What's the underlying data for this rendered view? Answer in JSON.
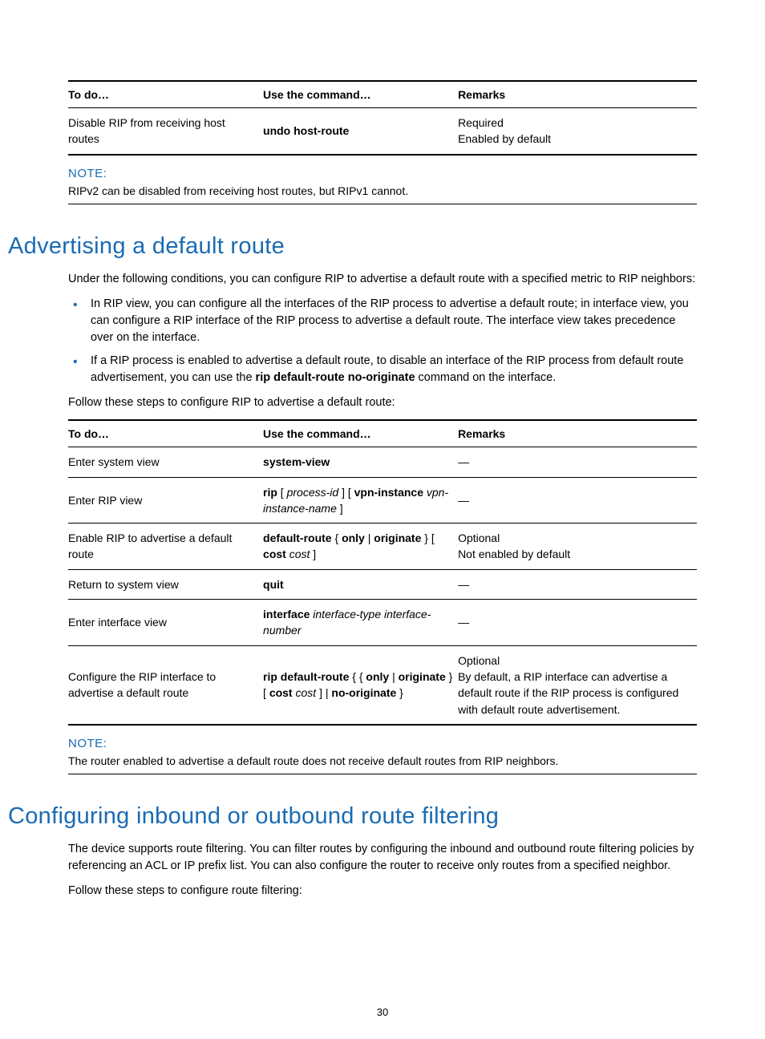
{
  "tableHeaders": {
    "todo": "To do…",
    "cmd": "Use the command…",
    "remarks": "Remarks"
  },
  "table1": {
    "row": {
      "todo": "Disable RIP from receiving host routes",
      "cmd": "undo host-route",
      "remarks1": "Required",
      "remarks2": "Enabled by default"
    }
  },
  "note1": {
    "label": "NOTE:",
    "text": "RIPv2 can be disabled from receiving host routes, but RIPv1 cannot."
  },
  "sectionA": {
    "title": "Advertising a default route",
    "intro": "Under the following conditions, you can configure RIP to advertise a default route with a specified metric to RIP neighbors:",
    "bullet1": "In RIP view, you can configure all the interfaces of the RIP process to advertise a default route; in interface view, you can configure a RIP interface of the RIP process to advertise a default route. The interface view takes precedence over on the interface.",
    "bullet2_pre": "If a RIP process is enabled to advertise a default route, to disable an interface of the RIP process from default route advertisement, you can use the ",
    "bullet2_bold": "rip default-route no-originate",
    "bullet2_post": " command on the interface.",
    "steps": "Follow these steps to configure RIP to advertise a default route:"
  },
  "table2": {
    "r1": {
      "todo": "Enter system view",
      "cmd_b": "system-view",
      "rem": "—"
    },
    "r2": {
      "todo": "Enter RIP view",
      "cmd_b1": "rip",
      "cmd_t1": " [ ",
      "cmd_i1": "process-id",
      "cmd_t2": " ] [ ",
      "cmd_b2": "vpn-instance",
      "cmd_i2": "vpn-instance-name",
      "cmd_t3": " ]",
      "rem": "—"
    },
    "r3": {
      "todo": "Enable RIP to advertise a default route",
      "cmd_b1": "default-route",
      "cmd_t1": " { ",
      "cmd_b2": "only",
      "cmd_t2": " | ",
      "cmd_b3": "originate",
      "cmd_t3": " } [ ",
      "cmd_b4": "cost",
      "cmd_t4": " ",
      "cmd_i1": "cost",
      "cmd_t5": " ]",
      "rem1": "Optional",
      "rem2": "Not enabled by default"
    },
    "r4": {
      "todo": "Return to system view",
      "cmd_b": "quit",
      "rem": "—"
    },
    "r5": {
      "todo": "Enter interface view",
      "cmd_b1": "interface",
      "cmd_t1": " ",
      "cmd_i1": "interface-type interface-number",
      "rem": "—"
    },
    "r6": {
      "todo": "Configure the RIP interface to advertise a default route",
      "cmd_b1": "rip default-route",
      "cmd_t1": " { { ",
      "cmd_b2": "only",
      "cmd_t2": " | ",
      "cmd_b3": "originate",
      "cmd_t3": " } [ ",
      "cmd_b4": "cost",
      "cmd_t4": " ",
      "cmd_i1": "cost",
      "cmd_t5": " ] | ",
      "cmd_b5": "no-originate",
      "cmd_t6": " }",
      "rem1": "Optional",
      "rem2": "By default, a RIP interface can advertise a default route if the RIP process is configured with default route advertisement."
    }
  },
  "note2": {
    "label": "NOTE:",
    "text": "The router enabled to advertise a default route does not receive default routes from RIP neighbors."
  },
  "sectionB": {
    "title": "Configuring inbound or outbound route filtering",
    "para": "The device supports route filtering. You can filter routes by configuring the inbound and outbound route filtering policies by referencing an ACL or IP prefix list. You can also configure the router to receive only routes from a specified neighbor.",
    "steps": "Follow these steps to configure route filtering:"
  },
  "pageNumber": "30"
}
